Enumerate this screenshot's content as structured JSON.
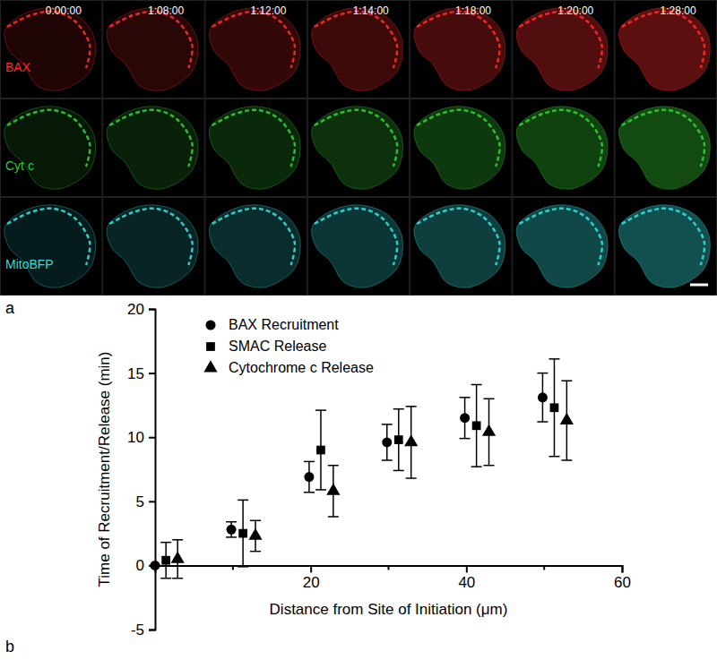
{
  "image_panel": {
    "label": "a",
    "times": [
      "0:00:00",
      "1:08:00",
      "1:12:00",
      "1:14:00",
      "1:18:00",
      "1:20:00",
      "1:28:00"
    ],
    "channels": [
      {
        "name": "BAX",
        "color": "#ff2a2a"
      },
      {
        "name": "Cyt c",
        "color": "#33cc33"
      },
      {
        "name": "MitoBFP",
        "color": "#33dddd"
      }
    ]
  },
  "chart_data": {
    "type": "scatter",
    "panel_label": "b",
    "x_label": "Distance from Site of Initiation (μm)",
    "y_label": "Time of Recruitment/Release (min)",
    "xlim": [
      0,
      60
    ],
    "xticks": [
      20,
      40,
      60
    ],
    "x_minor_ticks": [
      10,
      30,
      50
    ],
    "ylim": [
      -5,
      20
    ],
    "yticks": [
      -5,
      0,
      5,
      10,
      15,
      20
    ],
    "legend": "upper left",
    "series": [
      {
        "name": "BAX Recruitment",
        "marker": "circle",
        "color": "#000000",
        "x": [
          0,
          9.8,
          19.8,
          29.8,
          39.8,
          49.8
        ],
        "values": [
          0,
          2.8,
          6.9,
          9.6,
          11.5,
          13.1
        ],
        "errors": [
          0,
          0.6,
          1.2,
          1.4,
          1.6,
          1.9
        ]
      },
      {
        "name": "SMAC Release",
        "marker": "square",
        "color": "#000000",
        "x": [
          1.4,
          11.3,
          21.3,
          31.3,
          41.3,
          51.3
        ],
        "values": [
          0.4,
          2.5,
          9.0,
          9.8,
          10.9,
          12.3
        ],
        "errors": [
          1.4,
          2.6,
          3.1,
          2.4,
          3.2,
          3.8
        ]
      },
      {
        "name": "Cytochrome c Release",
        "marker": "triangle",
        "color": "#000000",
        "x": [
          2.9,
          12.9,
          22.9,
          32.9,
          42.9,
          52.9
        ],
        "values": [
          0.5,
          2.3,
          5.8,
          9.6,
          10.4,
          11.3
        ],
        "errors": [
          1.5,
          1.2,
          2.0,
          2.8,
          2.6,
          3.1
        ]
      }
    ]
  }
}
